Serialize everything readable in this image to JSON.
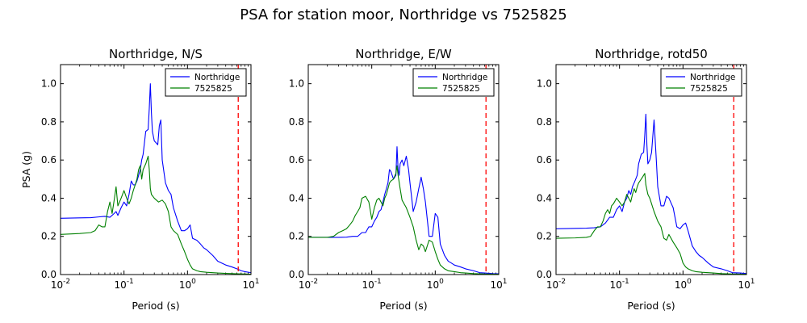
{
  "figure": {
    "title": "PSA for station moor, Northridge vs 7525825"
  },
  "chart_data": [
    {
      "type": "line",
      "title": "Northridge, N/S",
      "xlabel": "Period (s)",
      "ylabel": "PSA (g)",
      "xscale": "log",
      "xlim": [
        0.01,
        10
      ],
      "ylim": [
        0,
        1.1
      ],
      "xticks": [
        0.01,
        0.1,
        1,
        10
      ],
      "yticks": [
        "0.0",
        "0.2",
        "0.4",
        "0.6",
        "0.8",
        "1.0"
      ],
      "legend": "upper-right",
      "vline": {
        "x": 6.3,
        "color": "#ff0000",
        "style": "dashed"
      },
      "series": [
        {
          "name": "Northridge",
          "color": "#0000ff",
          "x": [
            0.01,
            0.02,
            0.03,
            0.04,
            0.05,
            0.06,
            0.07,
            0.075,
            0.08,
            0.09,
            0.1,
            0.11,
            0.12,
            0.13,
            0.14,
            0.15,
            0.16,
            0.17,
            0.18,
            0.19,
            0.2,
            0.22,
            0.24,
            0.25,
            0.26,
            0.27,
            0.28,
            0.3,
            0.32,
            0.34,
            0.36,
            0.38,
            0.4,
            0.45,
            0.5,
            0.55,
            0.6,
            0.7,
            0.8,
            0.9,
            1.0,
            1.1,
            1.2,
            1.4,
            1.6,
            1.8,
            2.0,
            2.5,
            3.0,
            4.0,
            5.0,
            6.0,
            7.0,
            8.0,
            10.0
          ],
          "y": [
            0.295,
            0.297,
            0.298,
            0.302,
            0.305,
            0.3,
            0.32,
            0.33,
            0.31,
            0.35,
            0.38,
            0.36,
            0.42,
            0.49,
            0.47,
            0.47,
            0.49,
            0.52,
            0.55,
            0.6,
            0.63,
            0.75,
            0.76,
            0.87,
            1.0,
            0.85,
            0.75,
            0.7,
            0.69,
            0.68,
            0.78,
            0.81,
            0.6,
            0.48,
            0.44,
            0.42,
            0.35,
            0.28,
            0.23,
            0.23,
            0.24,
            0.26,
            0.19,
            0.18,
            0.16,
            0.14,
            0.13,
            0.1,
            0.07,
            0.05,
            0.04,
            0.03,
            0.02,
            0.015,
            0.01
          ]
        },
        {
          "name": "7525825",
          "color": "#008000",
          "x": [
            0.01,
            0.02,
            0.03,
            0.035,
            0.04,
            0.045,
            0.05,
            0.055,
            0.06,
            0.065,
            0.07,
            0.075,
            0.08,
            0.085,
            0.09,
            0.1,
            0.11,
            0.12,
            0.13,
            0.14,
            0.15,
            0.16,
            0.17,
            0.18,
            0.19,
            0.2,
            0.22,
            0.24,
            0.25,
            0.26,
            0.27,
            0.3,
            0.35,
            0.4,
            0.45,
            0.5,
            0.55,
            0.6,
            0.7,
            0.8,
            0.9,
            1.0,
            1.1,
            1.2,
            1.4,
            1.6,
            2.0,
            2.5,
            3.0,
            4.0,
            5.0,
            6.0,
            8.0,
            10.0
          ],
          "y": [
            0.21,
            0.215,
            0.22,
            0.23,
            0.26,
            0.25,
            0.25,
            0.33,
            0.38,
            0.32,
            0.39,
            0.46,
            0.36,
            0.38,
            0.4,
            0.44,
            0.4,
            0.37,
            0.4,
            0.44,
            0.47,
            0.5,
            0.55,
            0.57,
            0.5,
            0.55,
            0.58,
            0.62,
            0.55,
            0.45,
            0.42,
            0.4,
            0.38,
            0.39,
            0.37,
            0.33,
            0.25,
            0.23,
            0.21,
            0.16,
            0.12,
            0.08,
            0.05,
            0.03,
            0.02,
            0.015,
            0.012,
            0.01,
            0.008,
            0.006,
            0.005,
            0.004,
            0.003,
            0.002
          ]
        }
      ]
    },
    {
      "type": "line",
      "title": "Northridge, E/W",
      "xlabel": "Period (s)",
      "ylabel": "",
      "xscale": "log",
      "xlim": [
        0.01,
        10
      ],
      "ylim": [
        0,
        1.1
      ],
      "xticks": [
        0.01,
        0.1,
        1,
        10
      ],
      "yticks": [
        "0.0",
        "0.2",
        "0.4",
        "0.6",
        "0.8",
        "1.0"
      ],
      "legend": "upper-right",
      "vline": {
        "x": 6.3,
        "color": "#ff0000",
        "style": "dashed"
      },
      "series": [
        {
          "name": "Northridge",
          "color": "#0000ff",
          "x": [
            0.01,
            0.02,
            0.03,
            0.04,
            0.05,
            0.06,
            0.07,
            0.08,
            0.09,
            0.1,
            0.11,
            0.12,
            0.13,
            0.14,
            0.15,
            0.16,
            0.17,
            0.18,
            0.19,
            0.2,
            0.22,
            0.24,
            0.25,
            0.26,
            0.27,
            0.28,
            0.3,
            0.32,
            0.35,
            0.38,
            0.4,
            0.45,
            0.5,
            0.55,
            0.6,
            0.65,
            0.7,
            0.8,
            0.9,
            1.0,
            1.1,
            1.2,
            1.4,
            1.6,
            1.8,
            2.0,
            2.5,
            3.0,
            4.0,
            5.0,
            6.0,
            8.0,
            10.0
          ],
          "y": [
            0.195,
            0.195,
            0.195,
            0.196,
            0.2,
            0.2,
            0.22,
            0.22,
            0.25,
            0.25,
            0.28,
            0.3,
            0.33,
            0.34,
            0.38,
            0.42,
            0.45,
            0.48,
            0.55,
            0.54,
            0.5,
            0.52,
            0.67,
            0.55,
            0.52,
            0.58,
            0.6,
            0.57,
            0.62,
            0.55,
            0.48,
            0.33,
            0.38,
            0.45,
            0.51,
            0.45,
            0.38,
            0.2,
            0.2,
            0.32,
            0.3,
            0.16,
            0.1,
            0.07,
            0.06,
            0.05,
            0.04,
            0.03,
            0.02,
            0.01,
            0.008,
            0.005,
            0.004
          ]
        },
        {
          "name": "7525825",
          "color": "#008000",
          "x": [
            0.01,
            0.02,
            0.025,
            0.03,
            0.035,
            0.04,
            0.045,
            0.05,
            0.055,
            0.06,
            0.065,
            0.07,
            0.08,
            0.09,
            0.1,
            0.11,
            0.12,
            0.13,
            0.14,
            0.15,
            0.16,
            0.17,
            0.18,
            0.19,
            0.2,
            0.22,
            0.24,
            0.25,
            0.26,
            0.28,
            0.3,
            0.35,
            0.4,
            0.45,
            0.5,
            0.55,
            0.6,
            0.65,
            0.7,
            0.8,
            0.9,
            1.0,
            1.1,
            1.2,
            1.4,
            1.6,
            2.0,
            2.5,
            3.0,
            4.0,
            6.0,
            10.0
          ],
          "y": [
            0.195,
            0.195,
            0.2,
            0.22,
            0.23,
            0.24,
            0.26,
            0.28,
            0.31,
            0.33,
            0.35,
            0.4,
            0.41,
            0.38,
            0.29,
            0.35,
            0.39,
            0.4,
            0.38,
            0.36,
            0.4,
            0.42,
            0.45,
            0.48,
            0.49,
            0.5,
            0.53,
            0.57,
            0.52,
            0.45,
            0.39,
            0.35,
            0.3,
            0.25,
            0.18,
            0.13,
            0.16,
            0.15,
            0.12,
            0.18,
            0.17,
            0.12,
            0.08,
            0.05,
            0.03,
            0.02,
            0.015,
            0.01,
            0.008,
            0.005,
            0.003,
            0.002
          ]
        }
      ]
    },
    {
      "type": "line",
      "title": "Northridge, rotd50",
      "xlabel": "Period (s)",
      "ylabel": "",
      "xscale": "log",
      "xlim": [
        0.01,
        10
      ],
      "ylim": [
        0,
        1.1
      ],
      "xticks": [
        0.01,
        0.1,
        1,
        10
      ],
      "yticks": [
        "0.0",
        "0.2",
        "0.4",
        "0.6",
        "0.8",
        "1.0"
      ],
      "legend": "upper-right",
      "vline": {
        "x": 6.3,
        "color": "#ff0000",
        "style": "dashed"
      },
      "series": [
        {
          "name": "Northridge",
          "color": "#0000ff",
          "x": [
            0.01,
            0.02,
            0.03,
            0.04,
            0.05,
            0.06,
            0.07,
            0.08,
            0.09,
            0.1,
            0.11,
            0.12,
            0.13,
            0.14,
            0.15,
            0.16,
            0.17,
            0.18,
            0.19,
            0.2,
            0.22,
            0.24,
            0.25,
            0.26,
            0.27,
            0.28,
            0.3,
            0.32,
            0.35,
            0.38,
            0.4,
            0.45,
            0.5,
            0.55,
            0.6,
            0.7,
            0.8,
            0.9,
            1.0,
            1.1,
            1.2,
            1.4,
            1.6,
            1.8,
            2.0,
            2.5,
            3.0,
            4.0,
            5.0,
            6.0,
            8.0,
            10.0
          ],
          "y": [
            0.24,
            0.242,
            0.243,
            0.245,
            0.25,
            0.27,
            0.3,
            0.3,
            0.34,
            0.36,
            0.33,
            0.38,
            0.4,
            0.44,
            0.42,
            0.46,
            0.48,
            0.5,
            0.52,
            0.58,
            0.63,
            0.64,
            0.73,
            0.84,
            0.68,
            0.58,
            0.6,
            0.64,
            0.81,
            0.6,
            0.46,
            0.36,
            0.36,
            0.41,
            0.4,
            0.35,
            0.25,
            0.24,
            0.26,
            0.27,
            0.23,
            0.15,
            0.12,
            0.1,
            0.09,
            0.06,
            0.04,
            0.03,
            0.02,
            0.01,
            0.008,
            0.005
          ]
        },
        {
          "name": "7525825",
          "color": "#008000",
          "x": [
            0.01,
            0.02,
            0.03,
            0.035,
            0.04,
            0.045,
            0.05,
            0.055,
            0.06,
            0.065,
            0.07,
            0.075,
            0.08,
            0.09,
            0.1,
            0.11,
            0.12,
            0.13,
            0.14,
            0.15,
            0.16,
            0.17,
            0.18,
            0.19,
            0.2,
            0.22,
            0.24,
            0.25,
            0.26,
            0.28,
            0.3,
            0.35,
            0.4,
            0.45,
            0.5,
            0.55,
            0.6,
            0.7,
            0.8,
            0.9,
            1.0,
            1.1,
            1.2,
            1.4,
            1.6,
            2.0,
            2.5,
            3.0,
            4.0,
            6.0,
            10.0
          ],
          "y": [
            0.19,
            0.192,
            0.195,
            0.2,
            0.23,
            0.25,
            0.25,
            0.28,
            0.32,
            0.34,
            0.32,
            0.36,
            0.37,
            0.4,
            0.38,
            0.36,
            0.38,
            0.42,
            0.4,
            0.38,
            0.42,
            0.45,
            0.43,
            0.46,
            0.48,
            0.5,
            0.52,
            0.53,
            0.47,
            0.42,
            0.4,
            0.33,
            0.28,
            0.25,
            0.19,
            0.18,
            0.21,
            0.17,
            0.14,
            0.11,
            0.06,
            0.04,
            0.03,
            0.02,
            0.015,
            0.012,
            0.01,
            0.008,
            0.005,
            0.003,
            0.002
          ]
        }
      ]
    }
  ]
}
